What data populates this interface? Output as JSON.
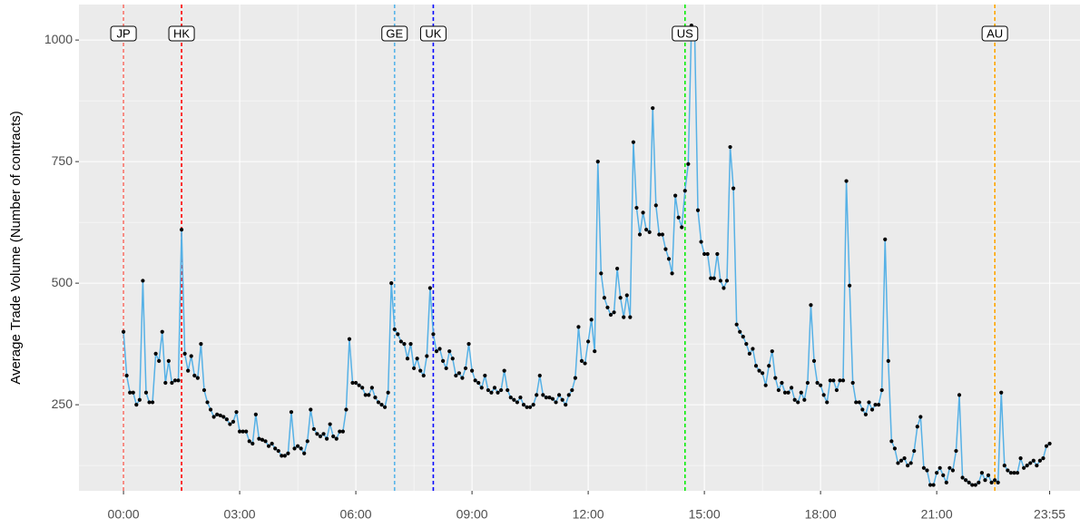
{
  "chart_data": {
    "type": "line",
    "ylabel": "Average Trade Volume (Number of contracts)",
    "x": [
      0,
      5,
      10,
      15,
      20,
      25,
      30,
      35,
      40,
      45,
      50,
      55,
      60,
      65,
      70,
      75,
      80,
      85,
      90,
      95,
      100,
      105,
      110,
      115,
      120,
      125,
      130,
      135,
      140,
      145,
      150,
      155,
      160,
      165,
      170,
      175,
      180,
      185,
      190,
      195,
      200,
      205,
      210,
      215,
      220,
      225,
      230,
      235,
      240,
      245,
      250,
      255,
      260,
      265,
      270,
      275,
      280,
      285,
      290,
      295,
      300,
      305,
      310,
      315,
      320,
      325,
      330,
      335,
      340,
      345,
      350,
      355,
      360,
      365,
      370,
      375,
      380,
      385,
      390,
      395,
      400,
      405,
      410,
      415,
      420,
      425,
      430,
      435,
      440,
      445,
      450,
      455,
      460,
      465,
      470,
      475,
      480,
      485,
      490,
      495,
      500,
      505,
      510,
      515,
      520,
      525,
      530,
      535,
      540,
      545,
      550,
      555,
      560,
      565,
      570,
      575,
      580,
      585,
      590,
      595,
      600,
      605,
      610,
      615,
      620,
      625,
      630,
      635,
      640,
      645,
      650,
      655,
      660,
      665,
      670,
      675,
      680,
      685,
      690,
      695,
      700,
      705,
      710,
      715,
      720,
      725,
      730,
      735,
      740,
      745,
      750,
      755,
      760,
      765,
      770,
      775,
      780,
      785,
      790,
      795,
      800,
      805,
      810,
      815,
      820,
      825,
      830,
      835,
      840,
      845,
      850,
      855,
      860,
      865,
      870,
      875,
      880,
      885,
      890,
      895,
      900,
      905,
      910,
      915,
      920,
      925,
      930,
      935,
      940,
      945,
      950,
      955,
      960,
      965,
      970,
      975,
      980,
      985,
      990,
      995,
      1000,
      1005,
      1010,
      1015,
      1020,
      1025,
      1030,
      1035,
      1040,
      1045,
      1050,
      1055,
      1060,
      1065,
      1070,
      1075,
      1080,
      1085,
      1090,
      1095,
      1100,
      1105,
      1110,
      1115,
      1120,
      1125,
      1130,
      1135,
      1140,
      1145,
      1150,
      1155,
      1160,
      1165,
      1170,
      1175,
      1180,
      1185,
      1190,
      1195,
      1200,
      1205,
      1210,
      1215,
      1220,
      1225,
      1230,
      1235,
      1240,
      1245,
      1250,
      1255,
      1260,
      1265,
      1270,
      1275,
      1280,
      1285,
      1290,
      1295,
      1300,
      1305,
      1310,
      1315,
      1320,
      1325,
      1330,
      1335,
      1340,
      1345,
      1350,
      1355,
      1360,
      1365,
      1370,
      1375,
      1380,
      1385,
      1390,
      1395,
      1400,
      1405,
      1410,
      1415,
      1420,
      1425,
      1430,
      1435
    ],
    "series": [
      {
        "color": "#56b1e6",
        "point_color": "#000000",
        "values": [
          400,
          310,
          275,
          275,
          250,
          260,
          505,
          275,
          255,
          255,
          355,
          340,
          400,
          295,
          340,
          295,
          300,
          300,
          610,
          355,
          320,
          350,
          310,
          305,
          375,
          280,
          255,
          240,
          225,
          230,
          228,
          225,
          220,
          210,
          215,
          235,
          195,
          195,
          195,
          175,
          170,
          230,
          180,
          178,
          175,
          165,
          170,
          160,
          155,
          145,
          145,
          150,
          235,
          160,
          165,
          160,
          150,
          175,
          240,
          200,
          190,
          185,
          190,
          180,
          210,
          185,
          180,
          195,
          195,
          240,
          385,
          295,
          295,
          290,
          285,
          270,
          270,
          285,
          265,
          255,
          250,
          245,
          275,
          500,
          405,
          395,
          380,
          375,
          345,
          375,
          325,
          345,
          320,
          310,
          350,
          490,
          395,
          360,
          365,
          340,
          325,
          360,
          345,
          310,
          315,
          305,
          325,
          375,
          320,
          300,
          295,
          285,
          310,
          280,
          275,
          285,
          275,
          280,
          320,
          280,
          265,
          260,
          255,
          265,
          250,
          245,
          245,
          250,
          270,
          310,
          270,
          265,
          265,
          262,
          255,
          270,
          260,
          250,
          270,
          280,
          305,
          410,
          340,
          335,
          380,
          425,
          360,
          750,
          520,
          470,
          450,
          435,
          440,
          530,
          470,
          430,
          475,
          430,
          790,
          655,
          600,
          645,
          610,
          605,
          860,
          660,
          600,
          600,
          570,
          550,
          520,
          680,
          635,
          615,
          690,
          745,
          1030,
          1015,
          650,
          585,
          560,
          560,
          510,
          510,
          560,
          505,
          490,
          505,
          780,
          695,
          415,
          400,
          390,
          375,
          355,
          365,
          330,
          320,
          315,
          290,
          330,
          360,
          305,
          280,
          295,
          275,
          275,
          285,
          260,
          255,
          275,
          260,
          295,
          455,
          340,
          295,
          290,
          270,
          255,
          300,
          300,
          280,
          300,
          300,
          710,
          495,
          295,
          255,
          255,
          240,
          230,
          255,
          240,
          250,
          250,
          280,
          590,
          340,
          175,
          160,
          130,
          135,
          140,
          125,
          130,
          155,
          205,
          225,
          120,
          115,
          85,
          85,
          110,
          120,
          105,
          90,
          120,
          115,
          155,
          270,
          100,
          95,
          90,
          85,
          85,
          90,
          110,
          95,
          105,
          90,
          95,
          90,
          275,
          125,
          115,
          110,
          110,
          110,
          140,
          120,
          125,
          130,
          135,
          125,
          135,
          140,
          165,
          170
        ]
      }
    ],
    "xlim": [
      -69,
      1482
    ],
    "ylim": [
      73,
      1073
    ],
    "xticks": [
      {
        "value": 0,
        "label": "00:00"
      },
      {
        "value": 180,
        "label": "03:00"
      },
      {
        "value": 360,
        "label": "06:00"
      },
      {
        "value": 540,
        "label": "09:00"
      },
      {
        "value": 720,
        "label": "12:00"
      },
      {
        "value": 900,
        "label": "15:00"
      },
      {
        "value": 1080,
        "label": "18:00"
      },
      {
        "value": 1260,
        "label": "21:00"
      },
      {
        "value": 1435,
        "label": "23:55"
      }
    ],
    "yticks": [
      250,
      500,
      750,
      1000
    ],
    "grid": true,
    "vlines": [
      {
        "x": 0,
        "label": "JP",
        "color": "#f8766d"
      },
      {
        "x": 90,
        "label": "HK",
        "color": "#ff0000"
      },
      {
        "x": 420,
        "label": "GE",
        "color": "#56b4e9"
      },
      {
        "x": 480,
        "label": "UK",
        "color": "#0000ff"
      },
      {
        "x": 870,
        "label": "US",
        "color": "#00ee00"
      },
      {
        "x": 1350,
        "label": "AU",
        "color": "#ffa500"
      }
    ]
  }
}
